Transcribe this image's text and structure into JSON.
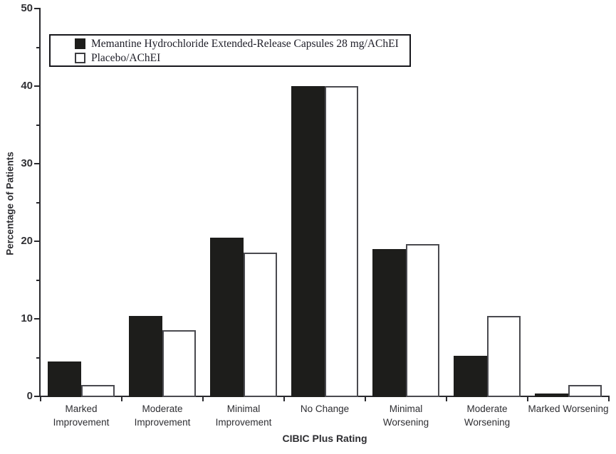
{
  "figure": {
    "background": "#ffffff"
  },
  "colors": {
    "axis": "#2a2a2e",
    "text": "#2e2e32",
    "bar_filled_fill": "#1d1d1b",
    "bar_filled_border": "#1d1d1b",
    "bar_open_fill": "#ffffff",
    "bar_open_border": "#4a4a4f"
  },
  "chart_data": {
    "type": "bar",
    "title": "",
    "xlabel": "CIBIC Plus Rating",
    "ylabel": "Percentage of Patients",
    "ylim": [
      0,
      50
    ],
    "y_major_ticks": [
      0,
      10,
      20,
      30,
      40,
      50
    ],
    "y_minor_step": 5,
    "grid": false,
    "legend_position": "top-left",
    "categories": [
      "Marked Improvement",
      "Moderate Improvement",
      "Minimal Improvement",
      "No Change",
      "Minimal Worsening",
      "Moderate Worsening",
      "Marked Worsening"
    ],
    "series": [
      {
        "name": "Memantine Hydrochloride Extended-Release Capsules 28 mg/AChEI",
        "style": "filled",
        "fill": "#1d1d1b",
        "border": "#1d1d1b",
        "values": [
          4.5,
          10.4,
          20.5,
          40,
          19,
          5.2,
          0.4
        ]
      },
      {
        "name": "Placebo/AChEI",
        "style": "open",
        "fill": "#ffffff",
        "border": "#4a4a4f",
        "values": [
          1.5,
          8.5,
          18.5,
          40,
          19.6,
          10.4,
          1.5
        ]
      }
    ]
  }
}
